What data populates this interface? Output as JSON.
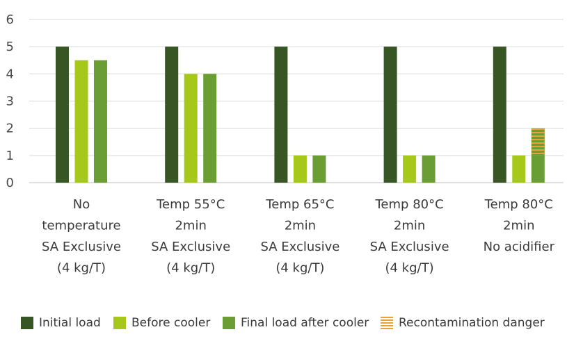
{
  "chart_data": {
    "type": "bar",
    "categories": [
      [
        "No",
        "temperature",
        "SA Exclusive",
        "(4 kg/T)"
      ],
      [
        "Temp 55°C",
        "2min",
        "SA Exclusive",
        "(4 kg/T)"
      ],
      [
        "Temp 65°C",
        "2min",
        "SA Exclusive",
        "(4 kg/T)"
      ],
      [
        "Temp 80°C",
        "2min",
        "SA Exclusive",
        "(4 kg/T)"
      ],
      [
        "Temp 80°C",
        "2min",
        "No acidifier"
      ]
    ],
    "series": [
      {
        "name": "Initial load",
        "color": "#375623",
        "values": [
          5,
          5,
          5,
          5,
          5
        ]
      },
      {
        "name": "Before cooler",
        "color": "#a6c81b",
        "values": [
          4.5,
          4,
          1,
          1,
          1
        ]
      },
      {
        "name": "Final load after cooler",
        "color": "#6a9e35",
        "values": [
          4.5,
          4,
          1,
          1,
          2
        ]
      }
    ],
    "overlay": {
      "name": "Recontamination danger",
      "color": "#e8a23a",
      "series_index": 2,
      "category_index": 4,
      "from": 1,
      "to": 2
    },
    "ylim": [
      0,
      6
    ],
    "yticks": [
      0,
      1,
      2,
      3,
      4,
      5,
      6
    ],
    "grid": true,
    "legend_position": "bottom",
    "title": "",
    "xlabel": "",
    "ylabel": ""
  },
  "legend": [
    {
      "label": "Initial load",
      "color": "#375623",
      "type": "solid"
    },
    {
      "label": "Before cooler",
      "color": "#a6c81b",
      "type": "solid"
    },
    {
      "label": "Final load after cooler",
      "color": "#6a9e35",
      "type": "solid"
    },
    {
      "label": "Recontamination danger",
      "color": "#e8a23a",
      "type": "hatch"
    }
  ]
}
